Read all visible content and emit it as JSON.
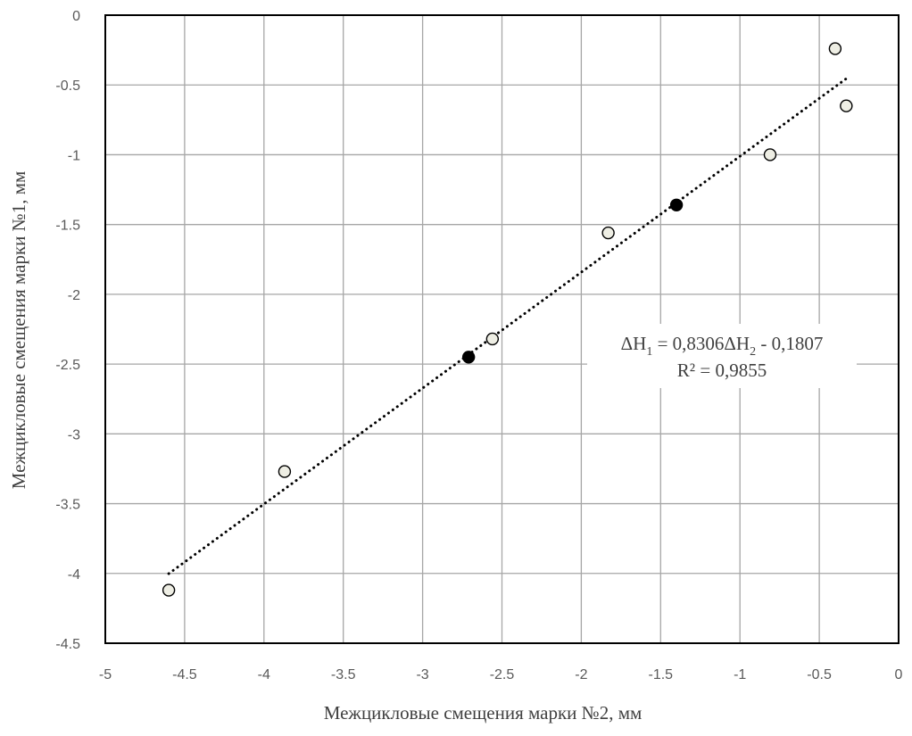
{
  "chart_data": {
    "type": "scatter",
    "title": "",
    "xlabel": "Межцикловые смещения марки №2, мм",
    "ylabel": "Межцикловые смещения марки №1, мм",
    "xlim": [
      -5,
      0
    ],
    "ylim": [
      -4.5,
      0
    ],
    "x_ticks": [
      -5,
      -4.5,
      -4,
      -3.5,
      -3,
      -2.5,
      -2,
      -1.5,
      -1,
      -0.5,
      0
    ],
    "x_tick_labels": [
      "-5",
      "-4.5",
      "-4",
      "-3.5",
      "-3",
      "-2.5",
      "-2",
      "-1.5",
      "-1",
      "-0.5",
      "0"
    ],
    "y_ticks": [
      0,
      -0.5,
      -1,
      -1.5,
      -2,
      -2.5,
      -3,
      -3.5,
      -4,
      -4.5
    ],
    "y_tick_labels": [
      "0",
      "-0.5",
      "-1",
      "-1.5",
      "-2",
      "-2.5",
      "-3",
      "-3.5",
      "-4",
      "-4.5"
    ],
    "grid": true,
    "series": [
      {
        "marker": "open-circle",
        "color": "#eeeee4",
        "stroke": "#000000",
        "points": [
          {
            "x": -4.6,
            "y": -4.12
          },
          {
            "x": -3.87,
            "y": -3.27
          },
          {
            "x": -2.56,
            "y": -2.32
          },
          {
            "x": -1.83,
            "y": -1.56
          },
          {
            "x": -0.81,
            "y": -1.0
          },
          {
            "x": -0.4,
            "y": -0.24
          },
          {
            "x": -0.33,
            "y": -0.65
          }
        ]
      },
      {
        "marker": "filled-circle",
        "color": "#000000",
        "stroke": "#000000",
        "points": [
          {
            "x": -2.71,
            "y": -2.45
          },
          {
            "x": -1.4,
            "y": -1.36
          }
        ]
      }
    ],
    "trendline": {
      "style": "dotted",
      "color": "#000000",
      "slope": 0.8306,
      "intercept": -0.1807,
      "x_start": -4.6,
      "x_end": -0.33
    },
    "annotation": {
      "equation": {
        "prefix": "ΔH",
        "sub1": "1",
        "middle": " = 0,8306ΔH",
        "sub2": "2",
        "suffix": " - 0,1807"
      },
      "r_squared": "R² = 0,9855"
    }
  }
}
